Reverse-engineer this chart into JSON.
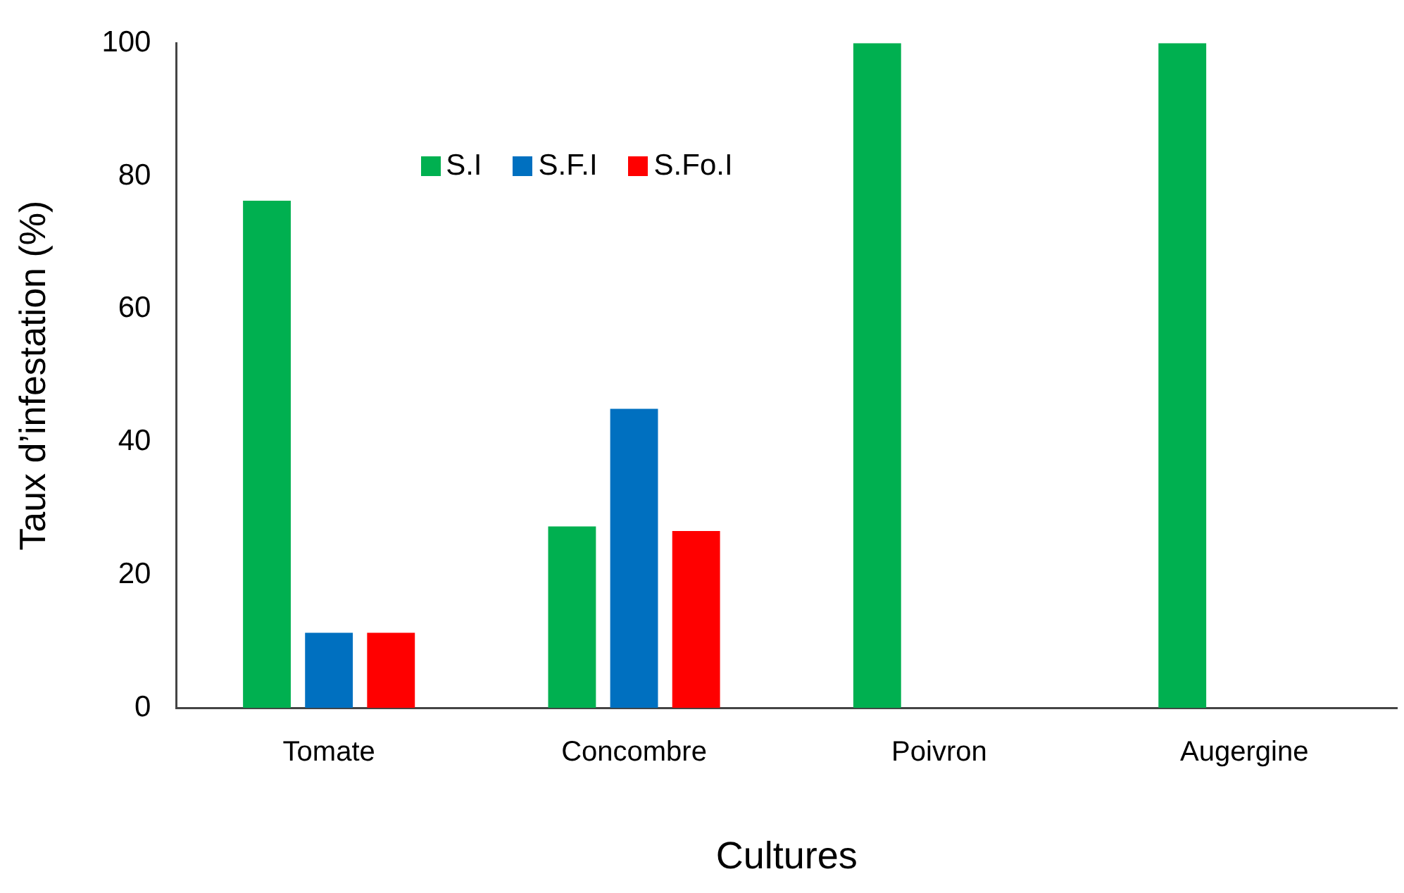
{
  "chart_data": {
    "type": "bar",
    "xlabel": "Cultures",
    "ylabel": "Taux d’infestation (%)",
    "categories": [
      "Tomate",
      "Concombre",
      "Poivron",
      "Augergine"
    ],
    "series": [
      {
        "name": "S.I",
        "color": "#00b050",
        "values": [
          76.3,
          27.3,
          100,
          100
        ]
      },
      {
        "name": "S.F.I",
        "color": "#0070c0",
        "values": [
          11.3,
          45,
          0,
          0
        ]
      },
      {
        "name": "S.Fo.I",
        "color": "#ff0000",
        "values": [
          11.3,
          26.6,
          0,
          0
        ]
      }
    ],
    "ylim": [
      0,
      100
    ],
    "yticks": [
      0,
      20,
      40,
      60,
      80,
      100
    ],
    "grid": false,
    "legend": "top"
  }
}
